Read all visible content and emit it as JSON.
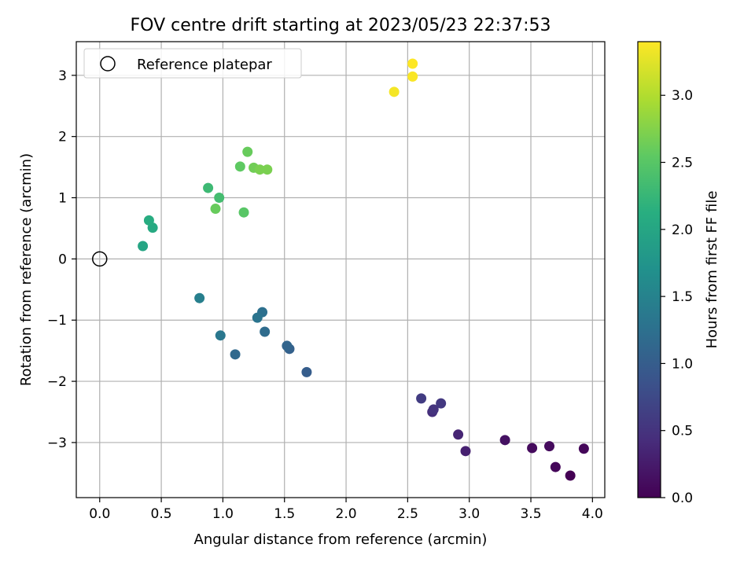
{
  "chart_data": {
    "type": "scatter",
    "title": "FOV centre drift starting at 2023/05/23 22:37:53",
    "xlabel": "Angular distance from reference (arcmin)",
    "ylabel": "Rotation from reference (arcmin)",
    "xlim": [
      -0.19,
      4.1
    ],
    "ylim": [
      -3.9,
      3.55
    ],
    "xticks": [
      0.0,
      0.5,
      1.0,
      1.5,
      2.0,
      2.5,
      3.0,
      3.5,
      4.0
    ],
    "xtick_labels": [
      "0.0",
      "0.5",
      "1.0",
      "1.5",
      "2.0",
      "2.5",
      "3.0",
      "3.5",
      "4.0"
    ],
    "yticks": [
      3,
      2,
      1,
      0,
      -1,
      -2,
      -3
    ],
    "ytick_labels": [
      "3",
      "2",
      "1",
      "0",
      "−1",
      "−2",
      "−3"
    ],
    "grid": true,
    "legend": {
      "position": "top-left",
      "entries": [
        "Reference platepar"
      ]
    },
    "reference_point": {
      "x": 0.0,
      "y": 0.0,
      "label": "Reference platepar"
    },
    "colorbar": {
      "label": "Hours from first FF file",
      "colormap": "viridis",
      "range": [
        0.0,
        3.4
      ],
      "ticks": [
        0.0,
        0.5,
        1.0,
        1.5,
        2.0,
        2.5,
        3.0
      ],
      "tick_labels": [
        "0.0",
        "0.5",
        "1.0",
        "1.5",
        "2.0",
        "2.5",
        "3.0"
      ]
    },
    "points": [
      {
        "x": 3.82,
        "y": -3.54,
        "hours": 0.0
      },
      {
        "x": 3.7,
        "y": -3.4,
        "hours": 0.05
      },
      {
        "x": 3.93,
        "y": -3.1,
        "hours": 0.05
      },
      {
        "x": 3.65,
        "y": -3.06,
        "hours": 0.1
      },
      {
        "x": 3.51,
        "y": -3.09,
        "hours": 0.1
      },
      {
        "x": 3.29,
        "y": -2.96,
        "hours": 0.15
      },
      {
        "x": 2.97,
        "y": -3.14,
        "hours": 0.3
      },
      {
        "x": 2.91,
        "y": -2.87,
        "hours": 0.35
      },
      {
        "x": 2.7,
        "y": -2.5,
        "hours": 0.45
      },
      {
        "x": 2.71,
        "y": -2.46,
        "hours": 0.5
      },
      {
        "x": 2.77,
        "y": -2.36,
        "hours": 0.55
      },
      {
        "x": 2.61,
        "y": -2.28,
        "hours": 0.6
      },
      {
        "x": 1.68,
        "y": -1.85,
        "hours": 1.0
      },
      {
        "x": 1.54,
        "y": -1.47,
        "hours": 1.05
      },
      {
        "x": 1.52,
        "y": -1.42,
        "hours": 1.1
      },
      {
        "x": 1.1,
        "y": -1.56,
        "hours": 1.15
      },
      {
        "x": 1.34,
        "y": -1.19,
        "hours": 1.2
      },
      {
        "x": 1.32,
        "y": -0.87,
        "hours": 1.25
      },
      {
        "x": 1.28,
        "y": -0.96,
        "hours": 1.3
      },
      {
        "x": 0.98,
        "y": -1.25,
        "hours": 1.35
      },
      {
        "x": 0.81,
        "y": -0.64,
        "hours": 1.45
      },
      {
        "x": 0.35,
        "y": 0.21,
        "hours": 2.0
      },
      {
        "x": 0.43,
        "y": 0.51,
        "hours": 2.05
      },
      {
        "x": 0.4,
        "y": 0.63,
        "hours": 2.1
      },
      {
        "x": 0.88,
        "y": 1.16,
        "hours": 2.3
      },
      {
        "x": 0.97,
        "y": 1.0,
        "hours": 2.35
      },
      {
        "x": 0.94,
        "y": 0.82,
        "hours": 2.6
      },
      {
        "x": 1.17,
        "y": 0.76,
        "hours": 2.5
      },
      {
        "x": 1.14,
        "y": 1.51,
        "hours": 2.55
      },
      {
        "x": 1.2,
        "y": 1.75,
        "hours": 2.6
      },
      {
        "x": 1.25,
        "y": 1.49,
        "hours": 2.65
      },
      {
        "x": 1.3,
        "y": 1.46,
        "hours": 2.7
      },
      {
        "x": 1.36,
        "y": 1.46,
        "hours": 2.7
      },
      {
        "x": 2.39,
        "y": 2.73,
        "hours": 3.35
      },
      {
        "x": 2.54,
        "y": 2.98,
        "hours": 3.38
      },
      {
        "x": 2.54,
        "y": 3.19,
        "hours": 3.4
      }
    ]
  }
}
